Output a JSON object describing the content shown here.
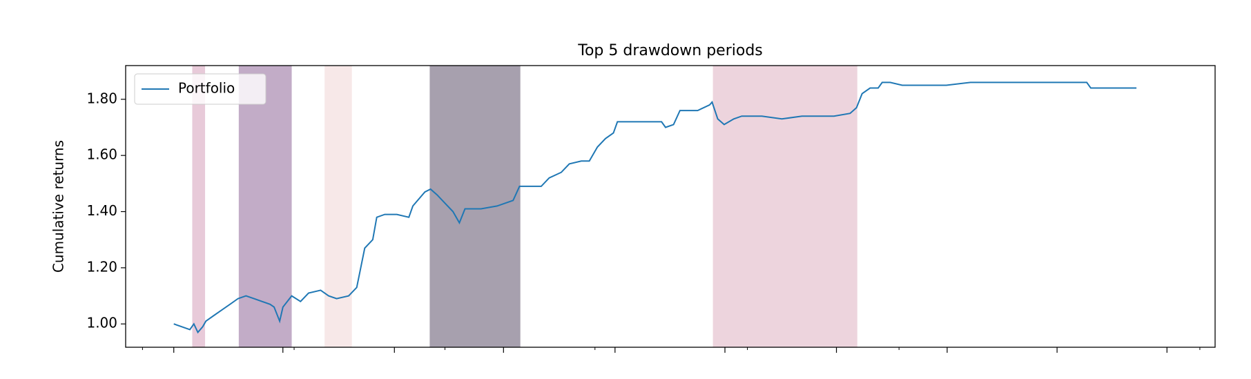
{
  "chart_data": {
    "type": "line",
    "title": "Top 5 drawdown periods",
    "y_label": "Cumulative returns",
    "x": [
      0,
      10,
      20,
      25,
      30,
      36,
      40,
      50,
      60,
      70,
      80,
      90,
      100,
      110,
      120,
      125,
      132,
      136,
      147,
      158,
      168,
      183,
      193,
      203,
      218,
      228,
      233,
      238,
      248,
      253,
      263,
      278,
      293,
      298,
      313,
      320,
      328,
      338,
      348,
      356,
      363,
      383,
      403,
      423,
      431,
      443,
      458,
      468,
      483,
      493,
      508,
      518,
      528,
      538,
      548,
      553,
      583,
      608,
      613,
      623,
      631,
      653,
      668,
      671,
      678,
      686,
      698,
      708,
      733,
      758,
      783,
      823,
      843,
      851,
      858,
      868,
      878,
      883,
      893,
      908,
      933,
      963,
      993,
      1013,
      1043,
      1083,
      1138,
      1143,
      1200
    ],
    "series": [
      {
        "name": "Portfolio",
        "color": "#1f77b4",
        "values": [
          1.0,
          0.99,
          0.98,
          1.0,
          0.97,
          0.99,
          1.01,
          1.03,
          1.05,
          1.07,
          1.09,
          1.1,
          1.09,
          1.08,
          1.07,
          1.06,
          1.01,
          1.06,
          1.1,
          1.08,
          1.11,
          1.12,
          1.1,
          1.09,
          1.1,
          1.13,
          1.2,
          1.27,
          1.3,
          1.38,
          1.39,
          1.39,
          1.38,
          1.42,
          1.47,
          1.48,
          1.46,
          1.43,
          1.4,
          1.36,
          1.41,
          1.41,
          1.42,
          1.44,
          1.49,
          1.49,
          1.49,
          1.52,
          1.54,
          1.57,
          1.58,
          1.58,
          1.63,
          1.66,
          1.68,
          1.72,
          1.72,
          1.72,
          1.7,
          1.71,
          1.76,
          1.76,
          1.78,
          1.79,
          1.73,
          1.71,
          1.73,
          1.74,
          1.74,
          1.73,
          1.74,
          1.74,
          1.75,
          1.77,
          1.82,
          1.84,
          1.84,
          1.86,
          1.86,
          1.85,
          1.85,
          1.85,
          1.86,
          1.86,
          1.86,
          1.86,
          1.86,
          1.84,
          1.84
        ]
      }
    ],
    "spans": [
      {
        "start": 23,
        "end": 39,
        "color": "rgba(180,80,130,0.3)"
      },
      {
        "start": 81,
        "end": 147,
        "color": "rgba(120,70,130,0.45)"
      },
      {
        "start": 188,
        "end": 222,
        "color": "rgba(220,150,150,0.22)"
      },
      {
        "start": 319,
        "end": 432,
        "color": "rgba(60,45,75,0.45)"
      },
      {
        "start": 672,
        "end": 852,
        "color": "rgba(200,120,150,0.32)"
      }
    ],
    "xlim": [
      -60,
      1298
    ],
    "xticks": [
      0,
      136,
      275,
      411,
      550,
      687,
      826,
      964,
      1101,
      1238
    ],
    "xminorticks": [
      -39,
      150,
      338,
      525,
      715,
      904,
      1279
    ],
    "ylim": [
      0.917,
      1.92
    ],
    "yticks": [
      {
        "value": 1,
        "label": "1.00"
      },
      {
        "value": 1.2,
        "label": "1.20"
      },
      {
        "value": 1.4,
        "label": "1.40"
      },
      {
        "value": 1.6,
        "label": "1.60"
      },
      {
        "value": 1.8,
        "label": "1.80"
      }
    ],
    "legend": "upper left"
  }
}
